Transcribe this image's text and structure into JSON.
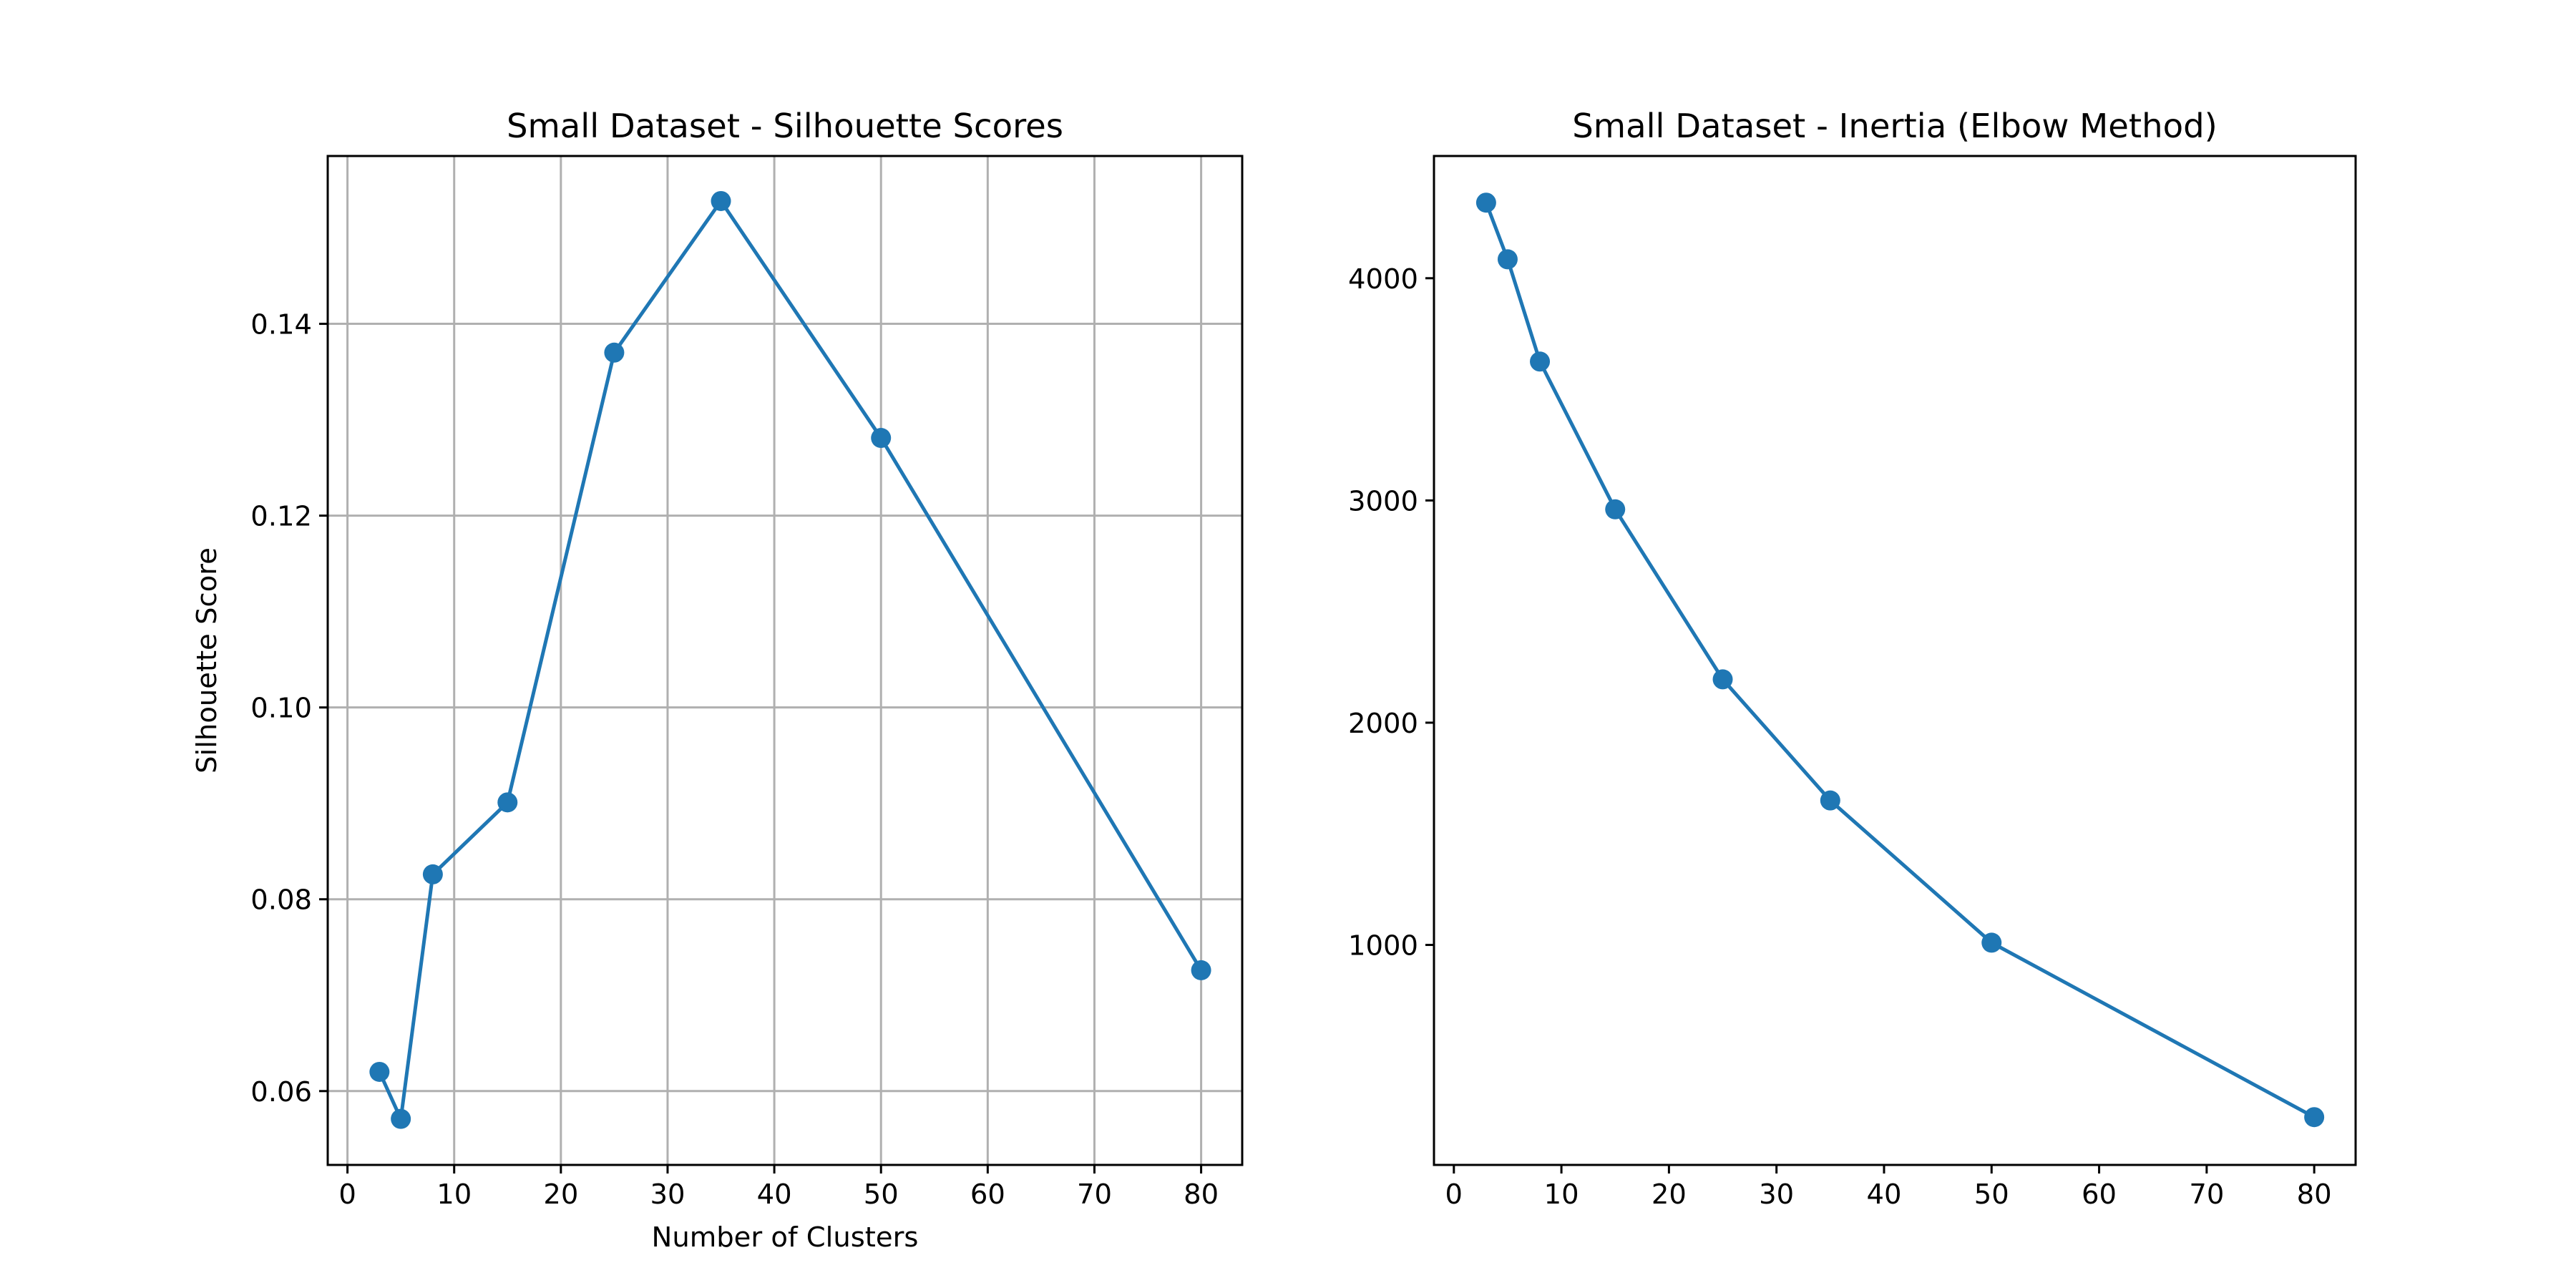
{
  "chart_data": [
    {
      "type": "line",
      "title": "Small Dataset - Silhouette Scores",
      "xlabel": "Number of Clusters",
      "ylabel": "Silhouette Score",
      "grid": true,
      "xlim": [
        -1.85,
        83.85
      ],
      "ylim": [
        0.0523,
        0.1575
      ],
      "xticks": [
        0,
        10,
        20,
        30,
        40,
        50,
        60,
        70,
        80
      ],
      "yticks": [
        0.06,
        0.08,
        0.1,
        0.12,
        0.14
      ],
      "ytick_labels": [
        "0.06",
        "0.08",
        "0.10",
        "0.12",
        "0.14"
      ],
      "color": "#1f77b4",
      "marker": "circle",
      "x": [
        3,
        5,
        8,
        15,
        25,
        35,
        50,
        80
      ],
      "y": [
        0.062,
        0.0571,
        0.0826,
        0.0901,
        0.137,
        0.1528,
        0.1281,
        0.0726
      ]
    },
    {
      "type": "line",
      "title": "Small Dataset - Inertia (Elbow Method)",
      "xlabel": "",
      "ylabel": "",
      "grid": false,
      "xlim": [
        -1.85,
        83.85
      ],
      "ylim": [
        10,
        4550
      ],
      "xticks": [
        0,
        10,
        20,
        30,
        40,
        50,
        60,
        70,
        80
      ],
      "yticks": [
        1000,
        2000,
        3000,
        4000
      ],
      "ytick_labels": [
        "1000",
        "2000",
        "3000",
        "4000"
      ],
      "color": "#1f77b4",
      "marker": "circle",
      "x": [
        3,
        5,
        8,
        15,
        25,
        35,
        50,
        80
      ],
      "y": [
        4340,
        4085,
        3625,
        2960,
        2195,
        1650,
        1010,
        225
      ]
    }
  ]
}
